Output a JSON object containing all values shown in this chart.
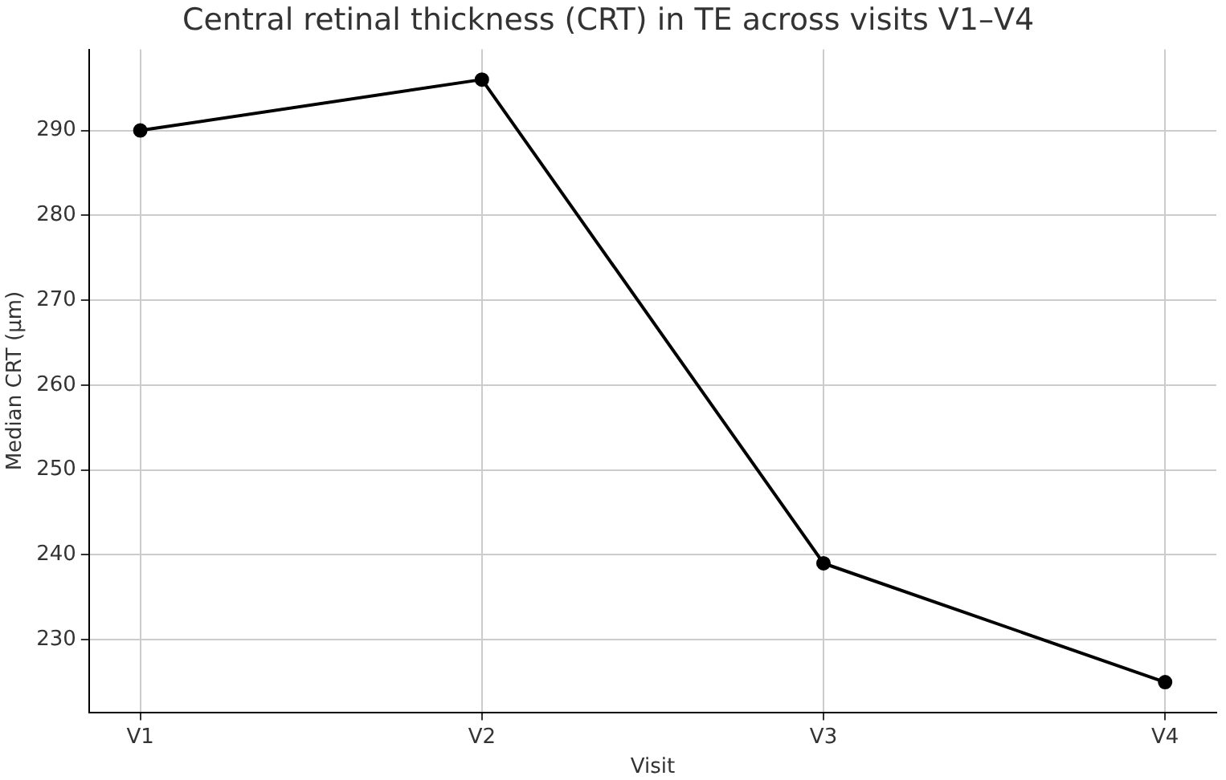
{
  "chart_data": {
    "type": "line",
    "title": "Central retinal thickness (CRT) in TE across visits V1–V4",
    "xlabel": "Visit",
    "ylabel": "Median CRT (µm)",
    "categories": [
      "V1",
      "V2",
      "V3",
      "V4"
    ],
    "series": [
      {
        "color": "#000000",
        "values": [
          290,
          296,
          239,
          225
        ]
      }
    ],
    "ylim": [
      221.45,
      299.55
    ],
    "yticks": [
      230,
      240,
      250,
      260,
      270,
      280,
      290
    ],
    "grid": true,
    "legend": false,
    "marker": "circle",
    "line_style": "solid"
  }
}
